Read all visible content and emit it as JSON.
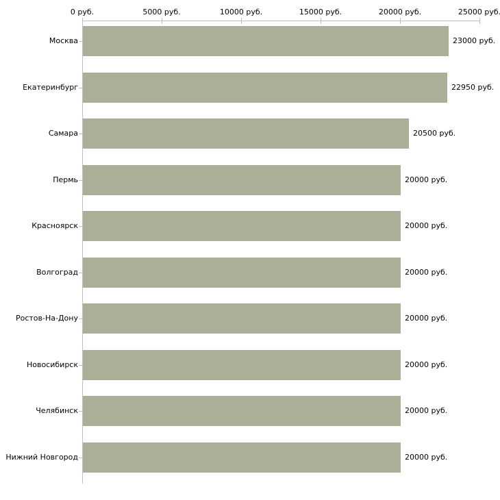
{
  "chart_data": {
    "type": "bar",
    "orientation": "horizontal",
    "title": "",
    "xlabel": "",
    "ylabel": "",
    "grid": "off",
    "legend": "none",
    "categories": [
      "Москва",
      "Екатеринбург",
      "Самара",
      "Пермь",
      "Красноярск",
      "Волгоград",
      "Ростов-На-Дону",
      "Новосибирск",
      "Челябинск",
      "Нижний Новгород"
    ],
    "values": [
      23000,
      22950,
      20500,
      20000,
      20000,
      20000,
      20000,
      20000,
      20000,
      20000
    ],
    "value_labels": [
      "23000 руб.",
      "22950 руб.",
      "20500 руб.",
      "20000 руб.",
      "20000 руб.",
      "20000 руб.",
      "20000 руб.",
      "20000 руб.",
      "20000 руб.",
      "20000 руб."
    ],
    "x_axis": {
      "position": "top",
      "range": [
        0,
        25000
      ],
      "ticks": [
        0,
        5000,
        10000,
        15000,
        20000,
        25000
      ],
      "tick_labels": [
        "0 руб.",
        "5000 руб.",
        "10000 руб.",
        "15000 руб.",
        "20000 руб.",
        "25000 руб."
      ]
    },
    "colors": {
      "bar": "#aab097",
      "axis_line": "#c0c0c0",
      "tick": "#c1c19a",
      "text": "#000000",
      "background": "#ffffff"
    }
  }
}
